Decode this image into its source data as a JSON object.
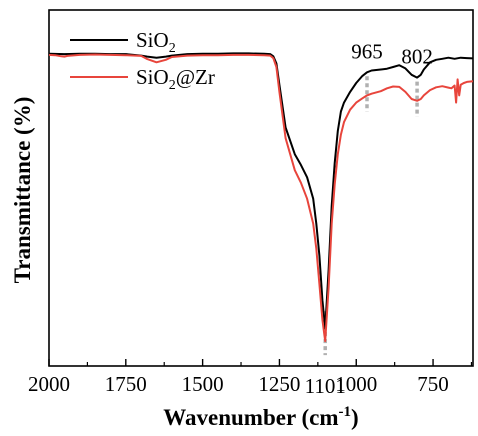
{
  "chart_data": {
    "type": "line",
    "xlabel": "Wavenumber (cm",
    "xlabel_sup": "-1",
    "xlabel_end": ")",
    "ylabel": "Transmittance (%)",
    "xlim": [
      2000,
      620
    ],
    "x_reversed": true,
    "ylim": [
      0,
      100
    ],
    "y_ticks_labeled": false,
    "grid": false,
    "legend_position": "top-left",
    "x_ticks": [
      2000,
      1750,
      1500,
      1250,
      1000,
      750
    ],
    "x_tick_labels": [
      "2000",
      "1750",
      "1500",
      "1250",
      "1000",
      "750"
    ],
    "series": [
      {
        "name": "SiO",
        "name_sub": "2",
        "name_end": "",
        "color": "#000000",
        "x": [
          2000,
          1950,
          1900,
          1850,
          1800,
          1750,
          1700,
          1680,
          1650,
          1620,
          1600,
          1550,
          1500,
          1450,
          1400,
          1350,
          1300,
          1280,
          1270,
          1260,
          1250,
          1230,
          1200,
          1180,
          1160,
          1140,
          1130,
          1120,
          1110,
          1101,
          1090,
          1080,
          1070,
          1060,
          1050,
          1040,
          1020,
          1000,
          980,
          965,
          950,
          920,
          900,
          880,
          860,
          840,
          820,
          802,
          790,
          780,
          760,
          740,
          720,
          700,
          680,
          660,
          640,
          620
        ],
        "y": [
          87.7,
          87.6,
          87.7,
          87.7,
          87.6,
          87.6,
          87.2,
          86.9,
          86.6,
          86.9,
          87.2,
          87.6,
          87.7,
          87.7,
          87.8,
          87.8,
          87.7,
          87.6,
          87.0,
          85.0,
          79.0,
          67.0,
          59.5,
          56.5,
          53.0,
          47.0,
          40.0,
          31.0,
          18.5,
          10.5,
          27.0,
          45.0,
          57.0,
          66.0,
          71.5,
          74.0,
          77.0,
          79.5,
          81.5,
          82.5,
          83.0,
          83.3,
          83.5,
          84.0,
          84.5,
          83.6,
          81.8,
          81.0,
          81.8,
          83.3,
          85.3,
          86.0,
          86.3,
          86.6,
          86.3,
          86.6,
          86.5,
          86.4
        ]
      },
      {
        "name": "SiO",
        "name_sub": "2",
        "name_end": "@Zr",
        "color": "#e8453c",
        "x": [
          2000,
          1980,
          1960,
          1950,
          1940,
          1900,
          1850,
          1800,
          1750,
          1700,
          1680,
          1650,
          1620,
          1600,
          1550,
          1500,
          1450,
          1400,
          1350,
          1300,
          1280,
          1270,
          1260,
          1250,
          1230,
          1200,
          1180,
          1160,
          1140,
          1130,
          1120,
          1110,
          1101,
          1090,
          1080,
          1070,
          1060,
          1050,
          1040,
          1020,
          1000,
          980,
          965,
          950,
          920,
          900,
          880,
          860,
          840,
          820,
          802,
          790,
          780,
          760,
          740,
          720,
          700,
          690,
          680,
          675,
          670,
          665,
          660,
          650,
          640,
          620
        ],
        "y": [
          87.4,
          87.3,
          87.0,
          86.9,
          87.1,
          87.4,
          87.5,
          87.4,
          87.3,
          87.1,
          86.2,
          85.3,
          86.0,
          86.8,
          87.2,
          87.3,
          87.3,
          87.4,
          87.4,
          87.3,
          87.2,
          86.5,
          84.0,
          77.0,
          64.0,
          55.0,
          51.5,
          47.0,
          40.0,
          33.0,
          23.0,
          13.0,
          7.0,
          22.0,
          40.0,
          51.0,
          59.5,
          65.0,
          68.5,
          72.0,
          74.0,
          75.2,
          76.0,
          76.5,
          77.2,
          78.0,
          78.5,
          78.4,
          77.0,
          75.0,
          74.5,
          75.0,
          76.0,
          77.5,
          78.3,
          78.6,
          78.2,
          78.0,
          78.8,
          74.0,
          80.5,
          76.0,
          79.0,
          79.5,
          79.8,
          80.0
        ]
      }
    ],
    "annotations": [
      {
        "text": "965",
        "x": 965,
        "label_position": "above"
      },
      {
        "text": "802",
        "x": 802,
        "label_position": "above"
      },
      {
        "text": "1101",
        "x": 1101,
        "label_position": "below"
      }
    ],
    "annotation_marker_color": "#b0b0b0"
  }
}
